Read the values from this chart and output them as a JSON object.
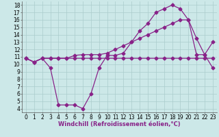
{
  "line1_x": [
    0,
    1,
    2,
    3,
    4,
    5,
    6,
    7,
    8,
    9,
    10,
    11,
    12,
    13,
    14,
    15,
    16,
    17,
    18,
    19,
    20,
    21,
    22,
    23
  ],
  "line1_y": [
    10.8,
    10.3,
    10.8,
    10.8,
    10.8,
    10.8,
    10.8,
    10.8,
    10.8,
    10.8,
    10.8,
    10.8,
    10.8,
    10.8,
    10.8,
    10.8,
    10.8,
    10.8,
    10.8,
    10.8,
    10.8,
    10.8,
    10.8,
    10.8
  ],
  "line2_x": [
    0,
    1,
    2,
    3,
    4,
    5,
    6,
    7,
    8,
    9,
    10,
    11,
    12,
    13,
    14,
    15,
    16,
    17,
    18,
    19,
    20,
    21,
    22,
    23
  ],
  "line2_y": [
    10.8,
    10.3,
    10.8,
    10.8,
    10.8,
    10.8,
    11.2,
    11.3,
    11.3,
    11.3,
    11.5,
    12.0,
    12.5,
    13.0,
    13.5,
    14.0,
    14.5,
    15.0,
    15.5,
    16.0,
    16.0,
    11.3,
    11.3,
    13.0
  ],
  "line3_x": [
    0,
    1,
    2,
    3,
    4,
    5,
    6,
    7,
    8,
    9,
    10,
    11,
    12,
    13,
    14,
    15,
    16,
    17,
    18,
    19,
    20,
    21,
    22,
    23
  ],
  "line3_y": [
    10.8,
    10.3,
    10.8,
    9.5,
    4.5,
    4.5,
    4.5,
    4.0,
    6.0,
    9.5,
    11.2,
    11.2,
    11.5,
    13.0,
    14.5,
    15.5,
    17.0,
    17.5,
    18.0,
    17.5,
    16.0,
    13.5,
    11.3,
    9.5
  ],
  "line_color": "#882288",
  "bg_color": "#cce8e8",
  "grid_color": "#b0d8d8",
  "xlabel": "Windchill (Refroidissement éolien,°C)",
  "xlim": [
    -0.5,
    23.5
  ],
  "ylim": [
    3.5,
    18.5
  ],
  "xticks": [
    0,
    1,
    2,
    3,
    4,
    5,
    6,
    7,
    8,
    9,
    10,
    11,
    12,
    13,
    14,
    15,
    16,
    17,
    18,
    19,
    20,
    21,
    22,
    23
  ],
  "yticks": [
    4,
    5,
    6,
    7,
    8,
    9,
    10,
    11,
    12,
    13,
    14,
    15,
    16,
    17,
    18
  ],
  "marker": "D",
  "markersize": 2.5,
  "linewidth": 0.9,
  "xlabel_fontsize": 6.0,
  "tick_fontsize": 5.5
}
